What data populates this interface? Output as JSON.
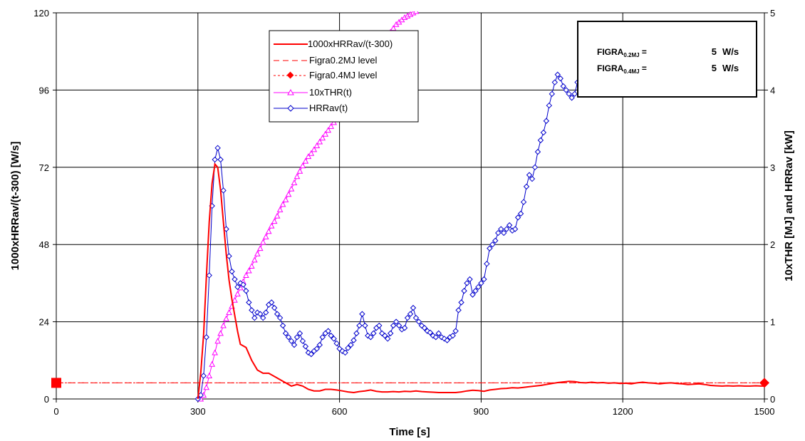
{
  "colors": {
    "hrr_ratio": "#ff0000",
    "figra02": "#ff0000",
    "figra04": "#ff0000",
    "thr": "#ff00ff",
    "hrrav": "#0000cc",
    "grid": "#000000"
  },
  "chart_data": {
    "type": "line",
    "xlabel": "Time [s]",
    "ylabel_left": "1000xHRRav/(t-300) [W/s]",
    "ylabel_right": "10xTHR [MJ] and HRRav [kW]",
    "xlim": [
      0,
      1500
    ],
    "ylim_left": [
      0,
      120
    ],
    "ylim_right": [
      0,
      5
    ],
    "x_ticks": [
      "0",
      "300",
      "600",
      "900",
      "1200",
      "1500"
    ],
    "y_left_ticks": [
      "0",
      "24",
      "48",
      "72",
      "96",
      "120"
    ],
    "y_right_ticks": [
      "0",
      "1",
      "2",
      "3",
      "4",
      "5"
    ],
    "grid": true,
    "legend_position": "top-center",
    "info_box": {
      "figra02_label": "FIGRA0.2MJ =",
      "figra02_value": "5",
      "figra04_label": "FIGRA0.4MJ =",
      "figra04_value": "5",
      "unit": "W/s"
    },
    "series": [
      {
        "name": "1000xHRRav/(t-300)",
        "axis": "left",
        "x": [
          300,
          306,
          312,
          318,
          324,
          330,
          336,
          342,
          348,
          354,
          360,
          366,
          372,
          378,
          384,
          390,
          402,
          414,
          426,
          438,
          450,
          462,
          474,
          486,
          498,
          510,
          522,
          534,
          546,
          558,
          570,
          582,
          594,
          606,
          618,
          630,
          642,
          654,
          666,
          678,
          690,
          702,
          714,
          726,
          738,
          750,
          762,
          774,
          786,
          798,
          810,
          822,
          834,
          846,
          858,
          870,
          882,
          894,
          906,
          918,
          930,
          942,
          954,
          966,
          978,
          990,
          1002,
          1014,
          1026,
          1038,
          1050,
          1062,
          1074,
          1086,
          1098,
          1110,
          1122,
          1134,
          1146,
          1158,
          1170,
          1182,
          1194,
          1206,
          1218,
          1230,
          1242,
          1254,
          1266,
          1278,
          1290,
          1302,
          1314,
          1326,
          1338,
          1350,
          1362,
          1374,
          1386,
          1398,
          1410,
          1422,
          1434,
          1446,
          1458,
          1470,
          1482,
          1494,
          1500
        ],
        "values": [
          0,
          8,
          20,
          38,
          55,
          67,
          73,
          72,
          65,
          55,
          45,
          37,
          31,
          26,
          21,
          17,
          16,
          12,
          9,
          8,
          8,
          7,
          6,
          5,
          4,
          4.5,
          4,
          3,
          2.5,
          2.5,
          3,
          3,
          2.8,
          2.5,
          2.2,
          2,
          2.3,
          2.5,
          2.8,
          2.4,
          2.2,
          2.2,
          2.3,
          2.2,
          2.4,
          2.3,
          2.5,
          2.3,
          2.2,
          2.1,
          2,
          2,
          2,
          2,
          2.2,
          2.5,
          2.7,
          2.6,
          2.4,
          2.8,
          3,
          3.2,
          3.3,
          3.5,
          3.4,
          3.6,
          3.8,
          4,
          4.2,
          4.5,
          4.8,
          5.1,
          5.3,
          5.5,
          5.4,
          5.1,
          5.0,
          5.2,
          5.0,
          5.1,
          4.9,
          5.0,
          4.8,
          4.9,
          4.7,
          5.0,
          5.2,
          5.0,
          4.9,
          4.7,
          4.9,
          5.0,
          4.8,
          4.7,
          4.5,
          4.6,
          4.7,
          4.5,
          4.2,
          4.1,
          4.0,
          4.1,
          4.0,
          4.1,
          4.0,
          4.0,
          4.1,
          4.0,
          4.0
        ]
      },
      {
        "name": "Figra0.2MJ level",
        "axis": "left",
        "x": [
          0,
          1500
        ],
        "values": [
          5,
          5
        ]
      },
      {
        "name": "Figra0.4MJ level",
        "axis": "left",
        "x": [
          0,
          1500
        ],
        "values": [
          5,
          5
        ]
      },
      {
        "name": "10xTHR(t)",
        "axis": "right",
        "x": [
          306,
          312,
          318,
          324,
          330,
          336,
          342,
          348,
          354,
          360,
          366,
          372,
          378,
          384,
          390,
          396,
          402,
          408,
          414,
          420,
          426,
          432,
          438,
          444,
          450,
          456,
          462,
          468,
          474,
          480,
          486,
          492,
          498,
          504,
          510,
          516,
          522,
          528,
          534,
          540,
          546,
          552,
          558,
          564,
          570,
          576,
          582,
          588,
          594,
          600,
          606,
          612,
          618,
          624,
          630,
          636,
          642,
          648,
          654,
          660,
          666,
          672,
          678,
          684,
          690,
          696,
          702,
          708,
          714,
          720,
          726,
          732,
          738,
          744,
          750,
          756,
          762
        ],
        "values": [
          0,
          0.05,
          0.15,
          0.3,
          0.45,
          0.6,
          0.75,
          0.85,
          0.95,
          1.04,
          1.12,
          1.2,
          1.28,
          1.36,
          1.44,
          1.52,
          1.6,
          1.66,
          1.72,
          1.8,
          1.88,
          1.95,
          2.03,
          2.1,
          2.17,
          2.24,
          2.3,
          2.37,
          2.45,
          2.52,
          2.58,
          2.65,
          2.72,
          2.8,
          2.88,
          2.95,
          3.02,
          3.08,
          3.14,
          3.18,
          3.23,
          3.28,
          3.33,
          3.38,
          3.43,
          3.48,
          3.53,
          3.58,
          3.64,
          3.7,
          3.76,
          3.82,
          3.88,
          3.94,
          4.0,
          4.06,
          4.12,
          4.18,
          4.24,
          4.3,
          4.36,
          4.42,
          4.48,
          4.54,
          4.6,
          4.66,
          4.7,
          4.75,
          4.8,
          4.85,
          4.88,
          4.91,
          4.94,
          4.96,
          4.98,
          5.0,
          5.02
        ]
      },
      {
        "name": "HRRav(t)",
        "axis": "right",
        "x": [
          300,
          306,
          312,
          318,
          324,
          330,
          336,
          342,
          348,
          354,
          360,
          366,
          372,
          378,
          384,
          390,
          396,
          402,
          408,
          414,
          420,
          426,
          432,
          438,
          444,
          450,
          456,
          462,
          468,
          474,
          480,
          486,
          492,
          498,
          504,
          510,
          516,
          522,
          528,
          534,
          540,
          546,
          552,
          558,
          564,
          570,
          576,
          582,
          588,
          594,
          600,
          606,
          612,
          618,
          624,
          630,
          636,
          642,
          648,
          654,
          660,
          666,
          672,
          678,
          684,
          690,
          696,
          702,
          708,
          714,
          720,
          726,
          732,
          738,
          744,
          750,
          756,
          762,
          768,
          774,
          780,
          786,
          792,
          798,
          804,
          810,
          816,
          822,
          828,
          834,
          840,
          846,
          852,
          858,
          864,
          870,
          876,
          882,
          888,
          894,
          900,
          906,
          912,
          918,
          924,
          930,
          936,
          942,
          948,
          954,
          960,
          966,
          972,
          978,
          984,
          990,
          996,
          1002,
          1008,
          1014,
          1020,
          1026,
          1032,
          1038,
          1044,
          1050,
          1056,
          1062,
          1068,
          1074,
          1080,
          1086,
          1092,
          1098,
          1104,
          1110,
          1116,
          1122,
          1128
        ],
        "values": [
          0,
          0.05,
          0.3,
          0.8,
          1.6,
          2.5,
          3.1,
          3.25,
          3.1,
          2.7,
          2.2,
          1.85,
          1.65,
          1.55,
          1.45,
          1.5,
          1.48,
          1.4,
          1.25,
          1.15,
          1.05,
          1.12,
          1.1,
          1.05,
          1.12,
          1.22,
          1.25,
          1.18,
          1.1,
          1.05,
          0.95,
          0.85,
          0.8,
          0.75,
          0.7,
          0.8,
          0.85,
          0.75,
          0.68,
          0.6,
          0.58,
          0.62,
          0.65,
          0.7,
          0.8,
          0.85,
          0.88,
          0.82,
          0.78,
          0.72,
          0.65,
          0.62,
          0.6,
          0.66,
          0.7,
          0.76,
          0.85,
          0.95,
          1.1,
          0.95,
          0.82,
          0.8,
          0.85,
          0.92,
          0.95,
          0.85,
          0.82,
          0.78,
          0.85,
          0.95,
          1.0,
          0.95,
          0.9,
          0.92,
          1.05,
          1.1,
          1.18,
          1.05,
          1.0,
          0.95,
          0.92,
          0.88,
          0.86,
          0.82,
          0.8,
          0.85,
          0.8,
          0.78,
          0.76,
          0.8,
          0.82,
          0.88,
          1.15,
          1.25,
          1.4,
          1.5,
          1.55,
          1.35,
          1.4,
          1.45,
          1.5,
          1.55,
          1.75,
          1.95,
          2.0,
          2.05,
          2.15,
          2.2,
          2.15,
          2.2,
          2.25,
          2.18,
          2.2,
          2.35,
          2.4,
          2.55,
          2.75,
          2.9,
          2.85,
          3.0,
          3.2,
          3.35,
          3.45,
          3.6,
          3.8,
          3.95,
          4.1,
          4.2,
          4.15,
          4.05,
          4.0,
          3.95,
          3.9,
          3.95,
          4.1,
          4.25,
          4.3,
          4.35,
          4.38
        ]
      }
    ]
  }
}
